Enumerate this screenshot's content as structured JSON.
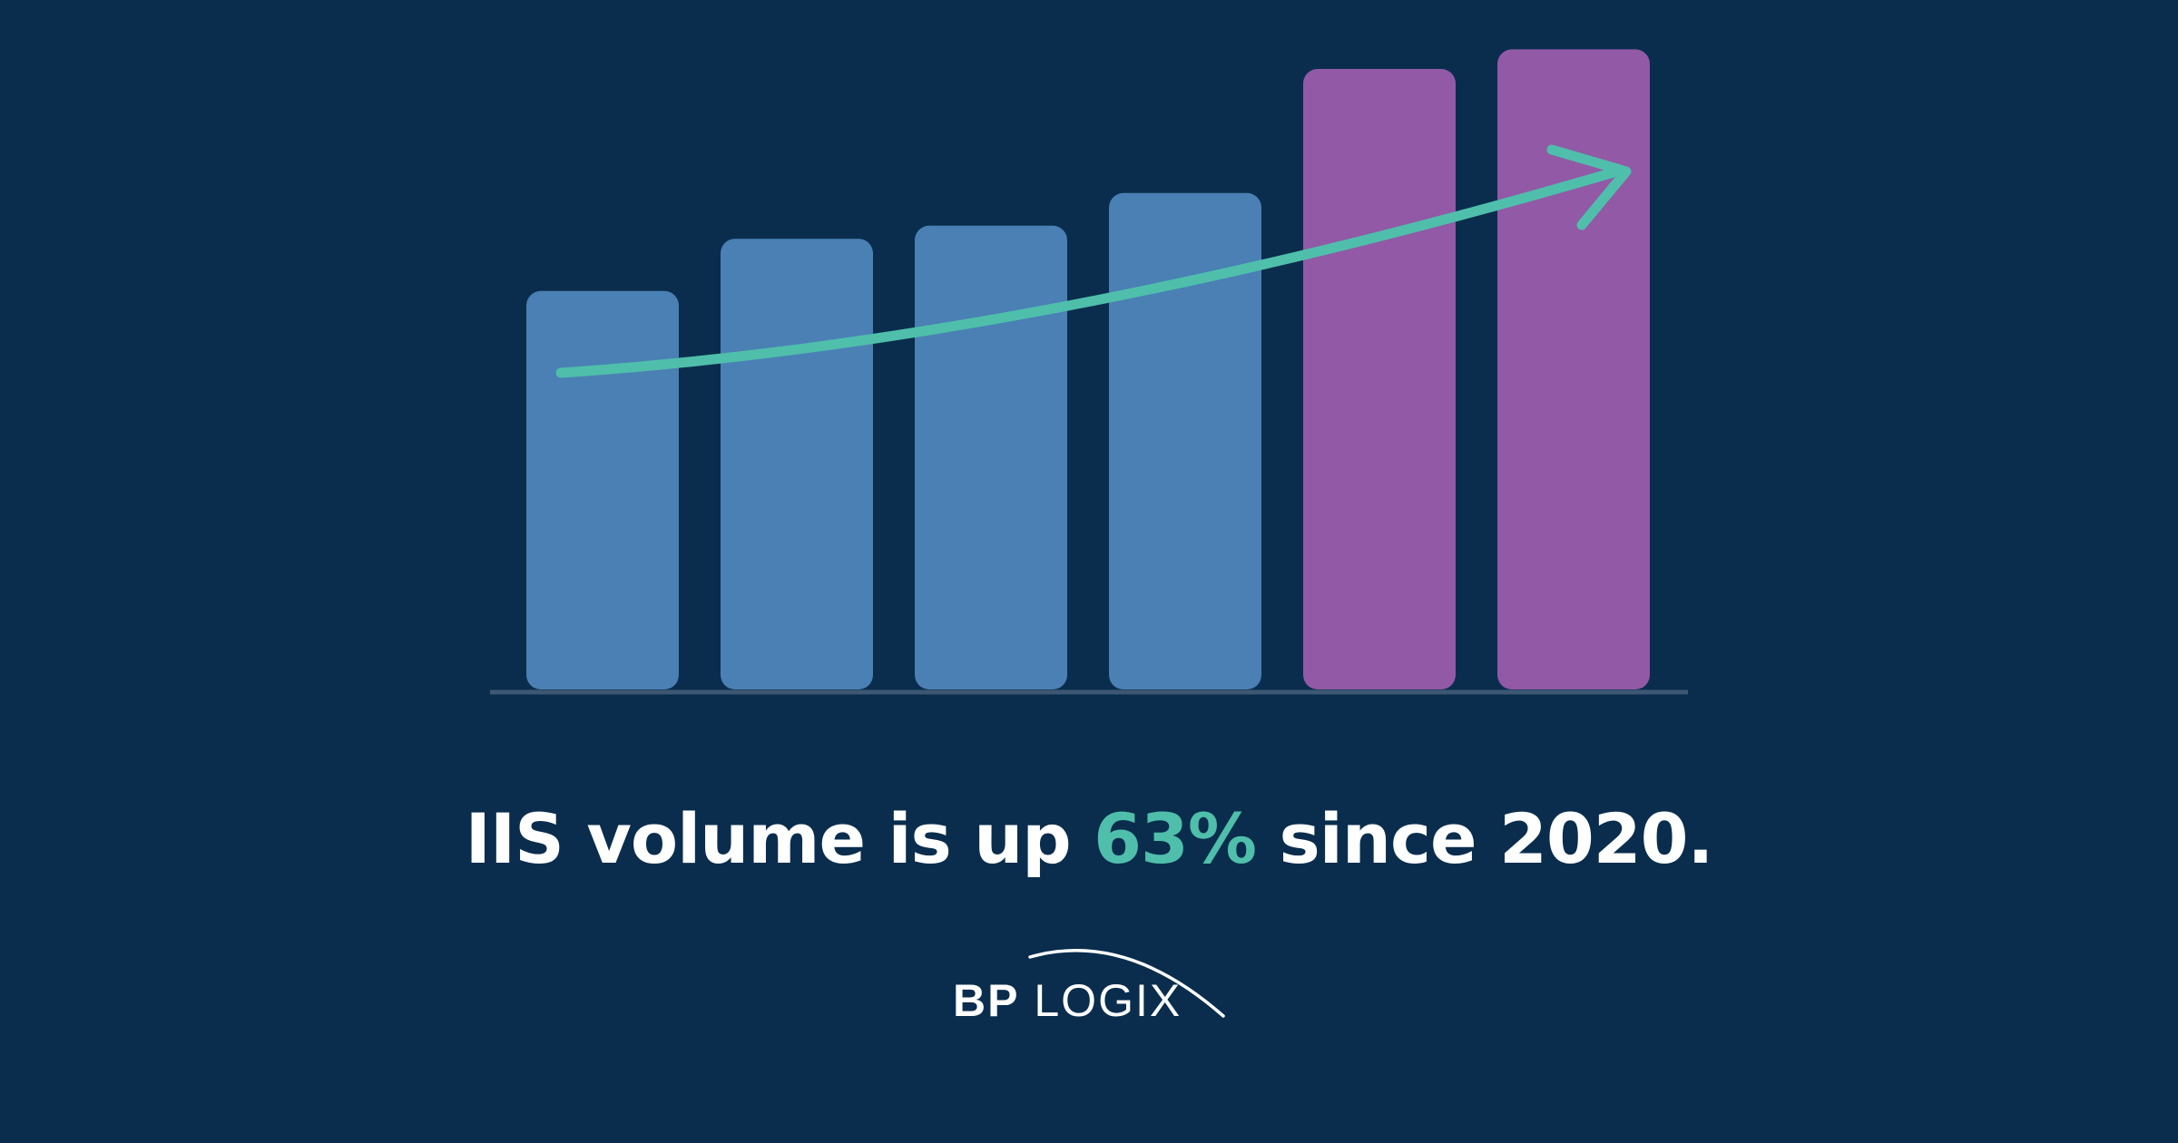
{
  "chart_data": {
    "type": "bar",
    "title": "",
    "xlabel": "",
    "ylabel": "",
    "ylim": [
      0,
      100
    ],
    "grid": false,
    "legend": "none",
    "categories": [
      "",
      "",
      "",
      "",
      "",
      ""
    ],
    "values": [
      61,
      69,
      71,
      76,
      95,
      98
    ],
    "bar_colors": [
      "#4a80b4",
      "#4a80b4",
      "#4a80b4",
      "#4a80b4",
      "#9159a6",
      "#9159a6"
    ],
    "trend_arrow_color": "#4fbfab",
    "baseline_color": "#3e5773"
  },
  "headline": {
    "prefix": "IIS volume is up ",
    "highlight": "63%",
    "suffix": " since 2020.",
    "highlight_color": "#4fbfab"
  },
  "logo": {
    "part1": "BP",
    "part2": "LOGIX"
  }
}
